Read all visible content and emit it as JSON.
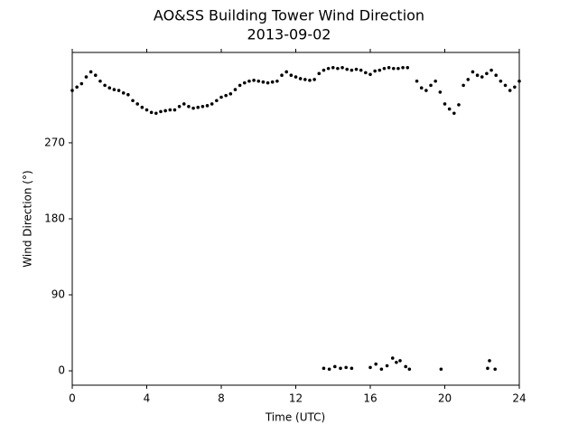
{
  "chart_data": {
    "type": "scatter",
    "title": "AO&SS Building Tower Wind Direction",
    "subtitle": "2013-09-02",
    "x_label": "Time (UTC)",
    "y_label": "Wind Direction (°)",
    "xlim": [
      0,
      24
    ],
    "ylim": [
      -17,
      377
    ],
    "xticks": [
      0,
      4,
      8,
      12,
      16,
      20,
      24
    ],
    "yticks": [
      0,
      90,
      180,
      270
    ],
    "grid": false,
    "series": [
      {
        "name": "Wind Direction",
        "color": "#000000",
        "x": [
          0,
          0.25,
          0.5,
          0.75,
          1,
          1.25,
          1.5,
          1.75,
          2,
          2.25,
          2.5,
          2.75,
          3,
          3.25,
          3.5,
          3.75,
          4,
          4.25,
          4.5,
          4.75,
          5,
          5.25,
          5.5,
          5.75,
          6,
          6.25,
          6.5,
          6.75,
          7,
          7.25,
          7.5,
          7.75,
          8,
          8.25,
          8.5,
          8.75,
          9,
          9.25,
          9.5,
          9.75,
          10,
          10.25,
          10.5,
          10.75,
          11,
          11.25,
          11.5,
          11.75,
          12,
          12.25,
          12.5,
          12.75,
          13,
          13.25,
          13.5,
          13.75,
          14,
          14.25,
          14.5,
          14.75,
          15,
          15.25,
          15.5,
          15.75,
          16,
          16.25,
          16.5,
          16.75,
          17,
          17.25,
          17.5,
          17.75,
          18,
          18.5,
          18.75,
          19,
          19.25,
          19.5,
          19.75,
          20,
          20.25,
          20.5,
          20.75,
          21,
          21.25,
          21.5,
          21.75,
          22,
          22.25,
          22.5,
          22.75,
          23,
          23.25,
          23.5,
          23.75,
          24,
          13.5,
          13.8,
          14.1,
          14.4,
          14.7,
          15,
          16,
          16.3,
          16.6,
          16.9,
          17.2,
          17.4,
          17.6,
          17.9,
          18.1,
          19.8,
          22.3,
          22.4,
          22.7
        ],
        "values": [
          332,
          336,
          340,
          348,
          354,
          350,
          343,
          338,
          335,
          333,
          332,
          329,
          327,
          320,
          316,
          312,
          309,
          306,
          305,
          307,
          308,
          309,
          309,
          313,
          316,
          313,
          311,
          312,
          313,
          314,
          316,
          320,
          324,
          326,
          328,
          333,
          338,
          341,
          343,
          344,
          343,
          342,
          341,
          342,
          343,
          350,
          354,
          350,
          348,
          346,
          345,
          344,
          345,
          352,
          356,
          358,
          359,
          358,
          359,
          357,
          356,
          357,
          356,
          353,
          351,
          355,
          356,
          358,
          359,
          358,
          358,
          359,
          359,
          343,
          335,
          332,
          338,
          343,
          330,
          316,
          310,
          305,
          315,
          338,
          345,
          354,
          350,
          348,
          352,
          356,
          350,
          343,
          338,
          332,
          336,
          343,
          3,
          2,
          5,
          3,
          4,
          3,
          4,
          8,
          2,
          6,
          15,
          10,
          12,
          5,
          2,
          2,
          3,
          12,
          2
        ]
      }
    ]
  }
}
